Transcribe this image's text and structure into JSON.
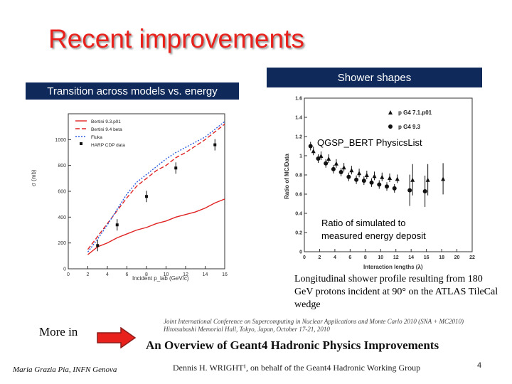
{
  "slide": {
    "title": "Recent improvements",
    "left_heading": "Transition across models vs. energy",
    "right_heading": "Shower shapes",
    "more_in": "More in",
    "author_footer": "Maria Grazia Pia, INFN Genova",
    "page_number": "4"
  },
  "left_chart": {
    "chart_data": {
      "type": "line",
      "title": "",
      "xlabel": "Incident p_lab (GeV/c)",
      "ylabel": "σ (mb)",
      "xlim": [
        0,
        16
      ],
      "ylim": [
        0,
        1200
      ],
      "xticks": [
        "0",
        "2",
        "4",
        "6",
        "8",
        "10",
        "12",
        "14",
        "16"
      ],
      "yticks": [
        "0",
        "200",
        "400",
        "600",
        "800",
        "1000"
      ],
      "series": [
        {
          "name": "Bertini 9.3.p01",
          "color": "#e02424",
          "style": "solid",
          "x": [
            2,
            3,
            4,
            5,
            6,
            7,
            8,
            9,
            10,
            11,
            12,
            13,
            14,
            15,
            16
          ],
          "y": [
            110,
            170,
            200,
            240,
            270,
            300,
            320,
            350,
            370,
            400,
            420,
            440,
            470,
            510,
            540
          ]
        },
        {
          "name": "Bertini 9.4 beta",
          "color": "#e02424",
          "style": "dashed",
          "x": [
            2,
            3,
            4,
            5,
            6,
            7,
            8,
            9,
            10,
            11,
            12,
            13,
            14,
            15,
            16
          ],
          "y": [
            150,
            250,
            350,
            450,
            550,
            640,
            700,
            760,
            800,
            860,
            900,
            950,
            1000,
            1060,
            1120
          ]
        },
        {
          "name": "Fluka",
          "color": "#2b5ce0",
          "style": "dotted",
          "x": [
            2,
            3,
            4,
            5,
            6,
            7,
            8,
            9,
            10,
            11,
            12,
            13,
            14,
            15,
            16
          ],
          "y": [
            130,
            230,
            340,
            460,
            580,
            670,
            730,
            790,
            850,
            900,
            940,
            980,
            1020,
            1080,
            1140
          ]
        },
        {
          "name": "HARP CDP data",
          "color": "#111111",
          "style": "points",
          "x": [
            3,
            5,
            8,
            11,
            15
          ],
          "y": [
            180,
            340,
            560,
            780,
            960
          ]
        }
      ]
    }
  },
  "right_chart": {
    "chart_data": {
      "type": "scatter",
      "xlabel": "Interaction lengths (λ)",
      "ylabel": "Ratio of MC/Data",
      "xlim": [
        0,
        22
      ],
      "ylim": [
        0,
        1.6
      ],
      "xticks": [
        "0",
        "2",
        "4",
        "6",
        "8",
        "10",
        "12",
        "14",
        "16",
        "18",
        "20",
        "22"
      ],
      "yticks": [
        "0",
        "0.2",
        "0.4",
        "0.6",
        "0.8",
        "1",
        "1.2",
        "1.4",
        "1.6"
      ],
      "series": [
        {
          "name": "p G4 7.1.p01",
          "marker": "triangle",
          "x": [
            1,
            2,
            3,
            4,
            5,
            6,
            7,
            8,
            9,
            10,
            11,
            12,
            14,
            16,
            18
          ],
          "y": [
            1.05,
            1.0,
            0.97,
            0.92,
            0.88,
            0.85,
            0.82,
            0.8,
            0.79,
            0.78,
            0.77,
            0.76,
            0.75,
            0.75,
            0.76
          ]
        },
        {
          "name": "p G4 9.3",
          "marker": "circle",
          "x": [
            1,
            2,
            3,
            4,
            5,
            6,
            7,
            8,
            9,
            10,
            11,
            12,
            14,
            16
          ],
          "y": [
            1.1,
            0.97,
            0.92,
            0.86,
            0.83,
            0.78,
            0.75,
            0.74,
            0.72,
            0.7,
            0.68,
            0.66,
            0.64,
            0.63
          ]
        }
      ],
      "annotations": [
        "QGSP_BERT PhysicsList",
        "Ratio of simulated to",
        "measured energy deposit"
      ]
    },
    "profile_caption": "Longitudinal shower profile resulting from 180 GeV protons incident at 90° on the ATLAS TileCal wedge"
  },
  "reference": {
    "conference_line1": "Joint International Conference on Supercomputing in Nuclear Applications and Monte Carlo 2010 (SNA + MC2010)",
    "conference_line2": "Hitotsubashi Memorial Hall, Tokyo, Japan, October 17-21, 2010",
    "paper_title": "An Overview of Geant4 Hadronic Physics Improvements",
    "author_line": "Dennis H. WRIGHT¹, on behalf of the Geant4 Hadronic Working Group"
  },
  "colors": {
    "title": "#e8211c",
    "bar": "#0f2a5a",
    "arrow": "#e8211c"
  }
}
